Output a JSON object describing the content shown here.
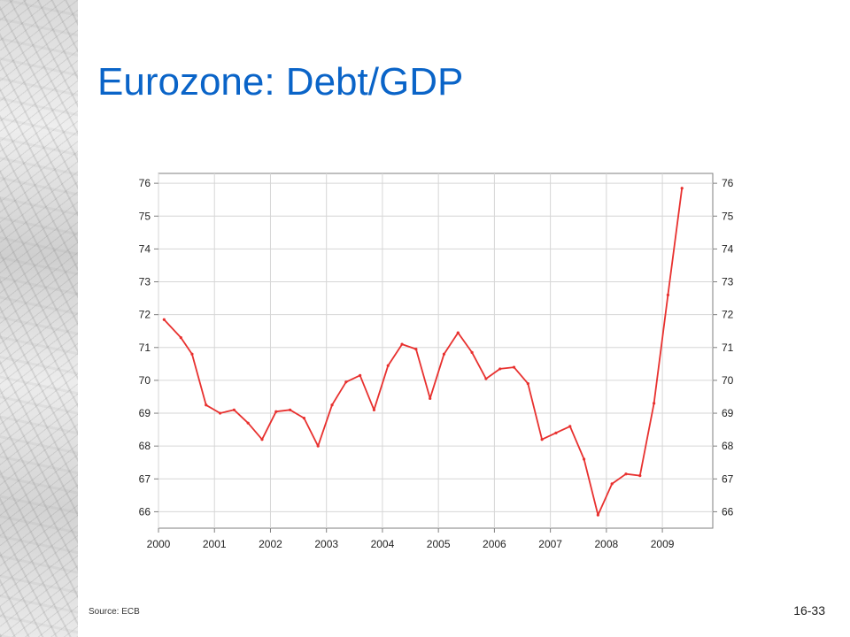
{
  "slide": {
    "title": "Eurozone: Debt/GDP",
    "source": "Source: ECB",
    "page_number": "16-33"
  },
  "chart_data": {
    "type": "line",
    "title": "",
    "xlabel": "",
    "ylabel": "",
    "xlim": [
      2000,
      2009.9
    ],
    "ylim": [
      65.5,
      76.3
    ],
    "yticks": [
      66,
      67,
      68,
      69,
      70,
      71,
      72,
      73,
      74,
      75,
      76
    ],
    "xticks": [
      2000,
      2001,
      2002,
      2003,
      2004,
      2005,
      2006,
      2007,
      2008,
      2009
    ],
    "grid": true,
    "right_axis_mirror": true,
    "line_color": "#e8312f",
    "series": [
      {
        "x": [
          2000.1,
          2000.4,
          2000.6,
          2000.85,
          2001.1,
          2001.35,
          2001.6,
          2001.85,
          2002.1,
          2002.35,
          2002.6,
          2002.85,
          2003.1,
          2003.35,
          2003.6,
          2003.85,
          2004.1,
          2004.35,
          2004.6,
          2004.85,
          2005.1,
          2005.35,
          2005.6,
          2005.85,
          2006.1,
          2006.35,
          2006.6,
          2006.85,
          2007.1,
          2007.35,
          2007.6,
          2007.85,
          2008.1,
          2008.35,
          2008.6,
          2008.85,
          2009.1,
          2009.35
        ],
        "y": [
          71.85,
          71.3,
          70.8,
          69.25,
          69.0,
          69.1,
          68.7,
          68.2,
          69.05,
          69.1,
          68.85,
          68.0,
          69.25,
          69.95,
          70.15,
          69.1,
          70.45,
          71.1,
          70.95,
          69.45,
          70.8,
          71.45,
          70.85,
          70.05,
          70.35,
          70.4,
          69.9,
          68.2,
          68.4,
          68.6,
          67.6,
          65.9,
          66.85,
          67.15,
          67.1,
          69.3,
          72.6,
          75.85
        ]
      }
    ]
  }
}
